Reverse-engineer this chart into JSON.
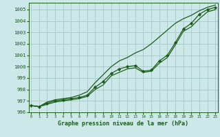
{
  "title": "Graphe pression niveau de la mer (hPa)",
  "xlabel": "Graphe pression niveau de la mer (hPa)",
  "bg_color": "#cce8e8",
  "grid_color": "#aacccc",
  "line_color": "#1a5c1a",
  "x_values": [
    0,
    1,
    2,
    3,
    4,
    5,
    6,
    7,
    8,
    9,
    10,
    11,
    12,
    13,
    14,
    15,
    16,
    17,
    18,
    19,
    20,
    21,
    22,
    23
  ],
  "series_main": [
    996.6,
    996.5,
    996.8,
    997.0,
    997.1,
    997.2,
    997.3,
    997.5,
    998.2,
    998.7,
    999.4,
    999.8,
    1000.0,
    1000.1,
    999.6,
    999.7,
    1000.5,
    1001.0,
    1002.1,
    1003.3,
    1003.8,
    1004.6,
    1005.0,
    1005.2
  ],
  "series_high": [
    996.6,
    996.5,
    996.9,
    997.1,
    997.2,
    997.3,
    997.5,
    997.8,
    998.6,
    999.3,
    1000.0,
    1000.5,
    1000.8,
    1001.2,
    1001.5,
    1002.0,
    1002.6,
    1003.2,
    1003.8,
    1004.2,
    1004.5,
    1004.9,
    1005.2,
    1005.4
  ],
  "series_low": [
    996.6,
    996.5,
    996.7,
    996.9,
    997.0,
    997.1,
    997.2,
    997.4,
    998.0,
    998.4,
    999.2,
    999.5,
    999.8,
    999.9,
    999.5,
    999.6,
    1000.3,
    1000.8,
    1001.9,
    1003.1,
    1003.5,
    1004.2,
    1004.8,
    1005.0
  ],
  "ylim_min": 996,
  "ylim_max": 1005.6,
  "yticks": [
    996,
    997,
    998,
    999,
    1000,
    1001,
    1002,
    1003,
    1004,
    1005
  ]
}
